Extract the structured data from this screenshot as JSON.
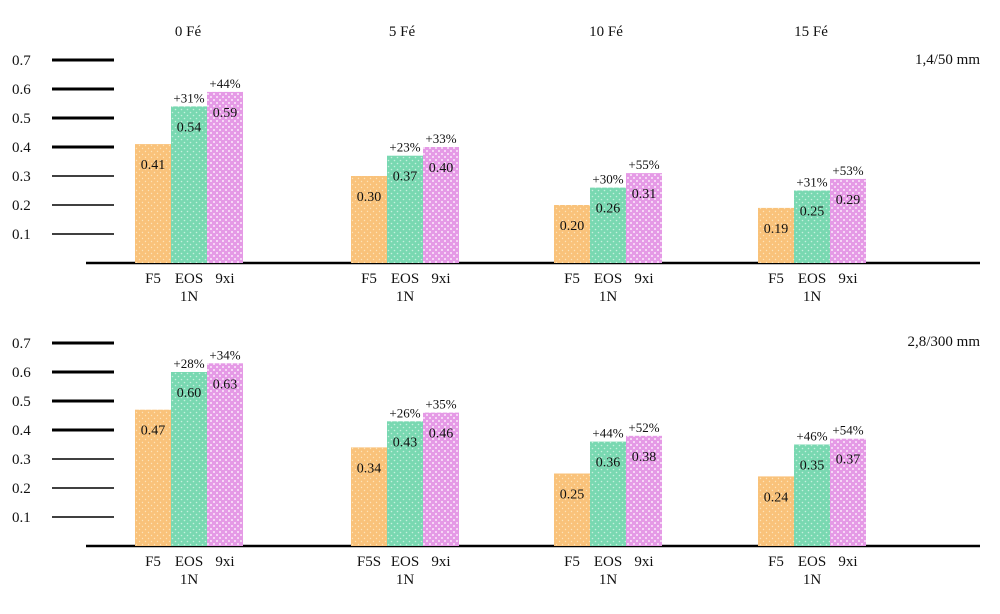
{
  "colors": {
    "F5": "#f9c27a",
    "EOS": "#79d8b1",
    "9xi": "#e59ae6",
    "axis": "#000000"
  },
  "chart_data": {
    "type": "bar",
    "column_headers": [
      "0 Fé",
      "5 Fé",
      "10 Fé",
      "15 Fé"
    ],
    "y_ticks": [
      "0.1",
      "0.2",
      "0.3",
      "0.4",
      "0.5",
      "0.6",
      "0.7"
    ],
    "ylim": [
      0,
      0.7
    ],
    "panels": [
      {
        "lens": "1,4/50 mm",
        "groups": [
          {
            "bars": [
              {
                "label": "F5",
                "label2": "",
                "value": 0.41,
                "value_text": "0.41",
                "pct": ""
              },
              {
                "label": "EOS",
                "label2": "1N",
                "value": 0.54,
                "value_text": "0.54",
                "pct": "+31%"
              },
              {
                "label": "9xi",
                "label2": "",
                "value": 0.59,
                "value_text": "0.59",
                "pct": "+44%"
              }
            ]
          },
          {
            "bars": [
              {
                "label": "F5",
                "label2": "",
                "value": 0.3,
                "value_text": "0.30",
                "pct": ""
              },
              {
                "label": "EOS",
                "label2": "1N",
                "value": 0.37,
                "value_text": "0.37",
                "pct": "+23%"
              },
              {
                "label": "9xi",
                "label2": "",
                "value": 0.4,
                "value_text": "0.40",
                "pct": "+33%"
              }
            ]
          },
          {
            "bars": [
              {
                "label": "F5",
                "label2": "",
                "value": 0.2,
                "value_text": "0.20",
                "pct": ""
              },
              {
                "label": "EOS",
                "label2": "1N",
                "value": 0.26,
                "value_text": "0.26",
                "pct": "+30%"
              },
              {
                "label": "9xi",
                "label2": "",
                "value": 0.31,
                "value_text": "0.31",
                "pct": "+55%"
              }
            ]
          },
          {
            "bars": [
              {
                "label": "F5",
                "label2": "",
                "value": 0.19,
                "value_text": "0.19",
                "pct": ""
              },
              {
                "label": "EOS",
                "label2": "1N",
                "value": 0.25,
                "value_text": "0.25",
                "pct": "+31%"
              },
              {
                "label": "9xi",
                "label2": "",
                "value": 0.29,
                "value_text": "0.29",
                "pct": "+53%"
              }
            ]
          }
        ]
      },
      {
        "lens": "2,8/300 mm",
        "groups": [
          {
            "bars": [
              {
                "label": "F5",
                "label2": "",
                "value": 0.47,
                "value_text": "0.47",
                "pct": ""
              },
              {
                "label": "EOS",
                "label2": "1N",
                "value": 0.6,
                "value_text": "0.60",
                "pct": "+28%"
              },
              {
                "label": "9xi",
                "label2": "",
                "value": 0.63,
                "value_text": "0.63",
                "pct": "+34%"
              }
            ]
          },
          {
            "bars": [
              {
                "label": "F5S",
                "label2": "",
                "value": 0.34,
                "value_text": "0.34",
                "pct": ""
              },
              {
                "label": "EOS",
                "label2": "1N",
                "value": 0.43,
                "value_text": "0.43",
                "pct": "+26%"
              },
              {
                "label": "9xi",
                "label2": "",
                "value": 0.46,
                "value_text": "0.46",
                "pct": "+35%"
              }
            ]
          },
          {
            "bars": [
              {
                "label": "F5",
                "label2": "",
                "value": 0.25,
                "value_text": "0.25",
                "pct": ""
              },
              {
                "label": "EOS",
                "label2": "1N",
                "value": 0.36,
                "value_text": "0.36",
                "pct": "+44%"
              },
              {
                "label": "9xi",
                "label2": "",
                "value": 0.38,
                "value_text": "0.38",
                "pct": "+52%"
              }
            ]
          },
          {
            "bars": [
              {
                "label": "F5",
                "label2": "",
                "value": 0.24,
                "value_text": "0.24",
                "pct": ""
              },
              {
                "label": "EOS",
                "label2": "1N",
                "value": 0.35,
                "value_text": "0.35",
                "pct": "+46%"
              },
              {
                "label": "9xi",
                "label2": "",
                "value": 0.37,
                "value_text": "0.37",
                "pct": "+54%"
              }
            ]
          }
        ]
      }
    ]
  }
}
